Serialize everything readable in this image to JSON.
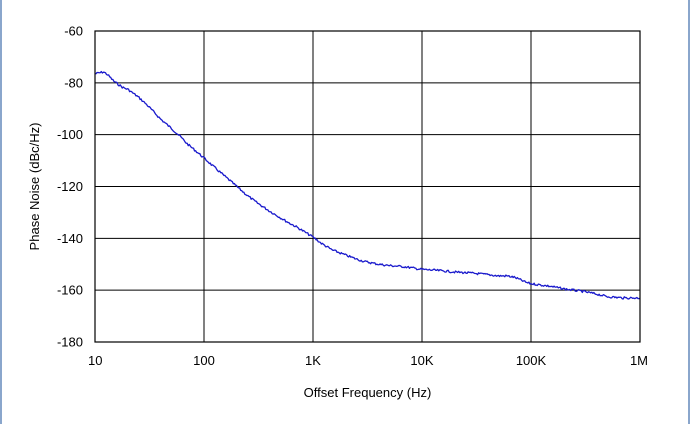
{
  "chart_data": {
    "type": "line",
    "title": "",
    "xlabel": "Offset Frequency (Hz)",
    "ylabel": "Phase Noise (dBc/Hz)",
    "x_scale": "log",
    "xlim": [
      10,
      1000000
    ],
    "ylim": [
      -180,
      -60
    ],
    "x_ticks": [
      {
        "value": 10,
        "label": "10"
      },
      {
        "value": 100,
        "label": "100"
      },
      {
        "value": 1000,
        "label": "1K"
      },
      {
        "value": 10000,
        "label": "10K"
      },
      {
        "value": 100000,
        "label": "100K"
      },
      {
        "value": 1000000,
        "label": "1M"
      }
    ],
    "y_ticks": [
      {
        "value": -60,
        "label": "-60"
      },
      {
        "value": -80,
        "label": "-80"
      },
      {
        "value": -100,
        "label": "-100"
      },
      {
        "value": -120,
        "label": "-120"
      },
      {
        "value": -140,
        "label": "-140"
      },
      {
        "value": -160,
        "label": "-160"
      },
      {
        "value": -180,
        "label": "-180"
      }
    ],
    "grid": true,
    "legend": "none",
    "series": [
      {
        "color": "#1a1acc",
        "x": [
          10,
          12,
          13,
          15,
          18,
          20,
          25,
          30,
          40,
          50,
          60,
          70,
          80,
          100,
          120,
          150,
          200,
          250,
          300,
          400,
          500,
          600,
          700,
          800,
          1000,
          1200,
          1500,
          2000,
          2500,
          3000,
          4000,
          5000,
          7000,
          10000,
          15000,
          20000,
          30000,
          40000,
          50000,
          60000,
          70000,
          80000,
          90000,
          100000,
          150000,
          200000,
          300000,
          400000,
          500000,
          700000,
          1000000
        ],
        "y": [
          -76.5,
          -75.8,
          -76.8,
          -79.5,
          -81.8,
          -82.5,
          -85.5,
          -88.5,
          -94,
          -97.5,
          -100.5,
          -103.5,
          -105.5,
          -109,
          -112,
          -115.5,
          -120,
          -123.5,
          -126,
          -129.5,
          -132,
          -134,
          -135.5,
          -137,
          -139.5,
          -142,
          -144.5,
          -146.5,
          -148,
          -149,
          -150,
          -150.5,
          -151,
          -152,
          -152.5,
          -153,
          -153.5,
          -154,
          -154.5,
          -154.5,
          -155,
          -156,
          -157,
          -157.5,
          -158.5,
          -159.5,
          -160.5,
          -161.5,
          -162.5,
          -163,
          -163
        ]
      }
    ]
  }
}
